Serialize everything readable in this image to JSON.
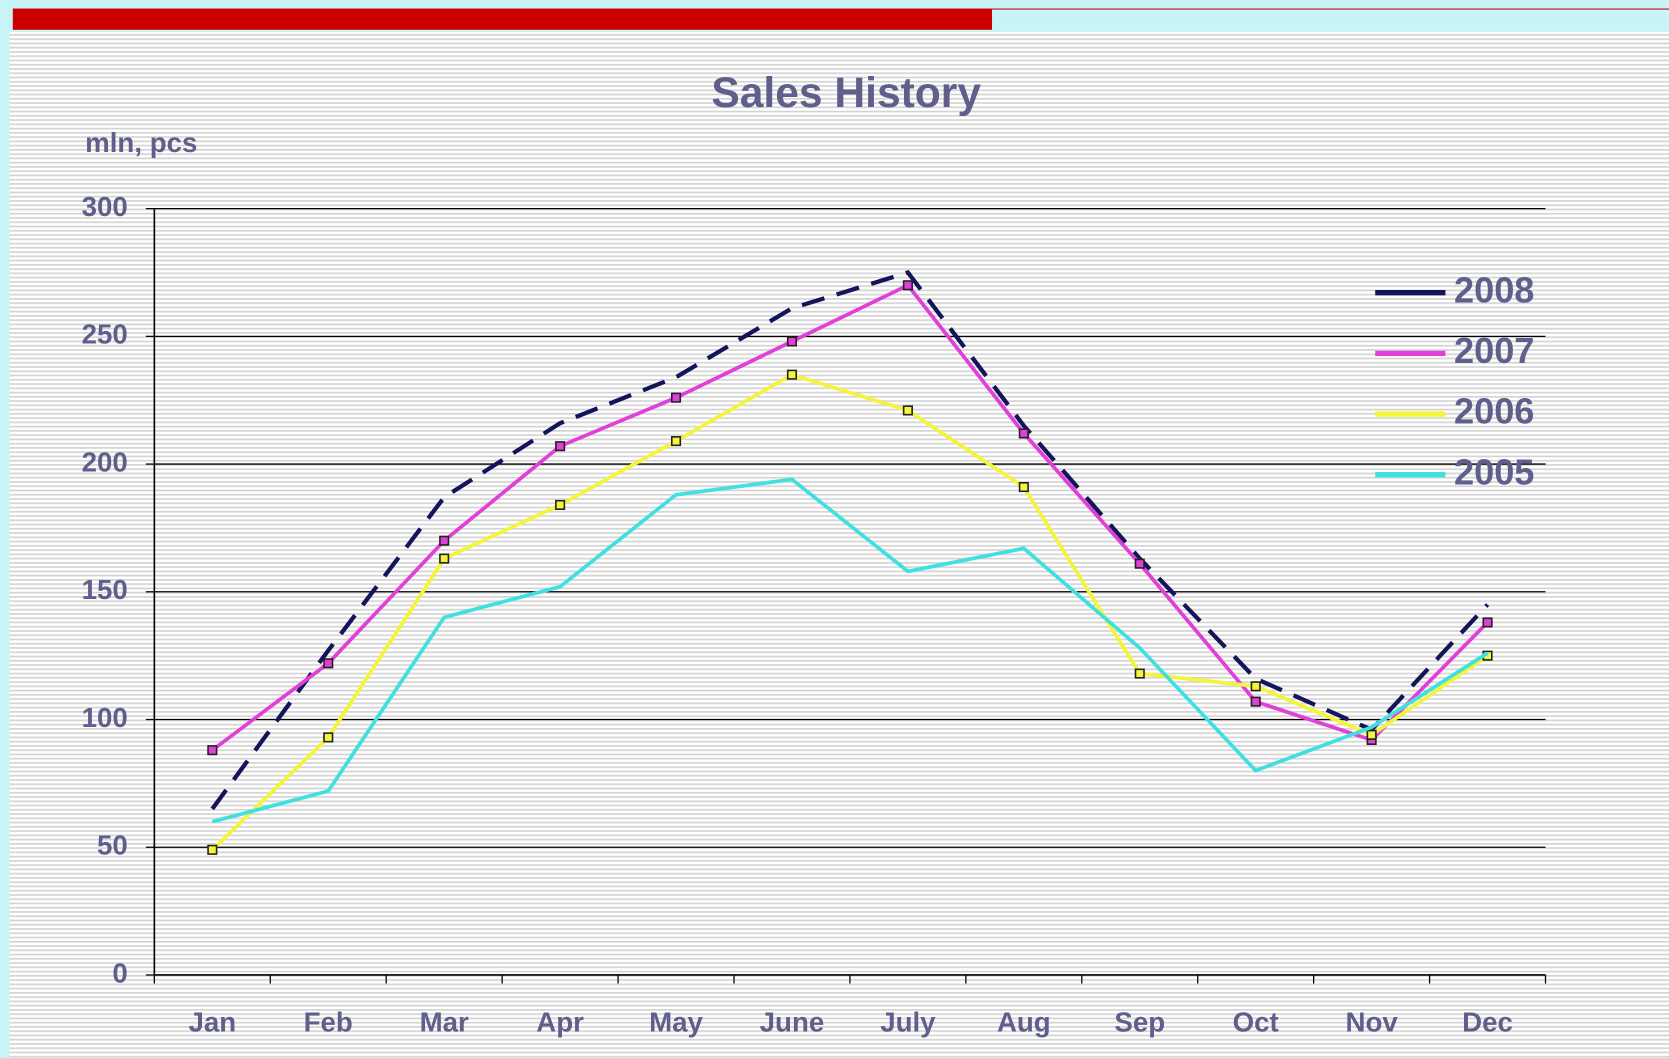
{
  "chart_data": {
    "type": "line",
    "title": "Sales History",
    "y_label": "mln, pcs",
    "categories": [
      "Jan",
      "Feb",
      "Mar",
      "Apr",
      "May",
      "June",
      "July",
      "Aug",
      "Sep",
      "Oct",
      "Nov",
      "Dec"
    ],
    "series": [
      {
        "name": "2008",
        "color": "#14145a",
        "dashed": true,
        "markers": false,
        "values": [
          65,
          127,
          187,
          216,
          234,
          261,
          275,
          215,
          163,
          116,
          96,
          145
        ]
      },
      {
        "name": "2007",
        "color": "#e040d8",
        "dashed": false,
        "markers": true,
        "values": [
          88,
          122,
          170,
          207,
          226,
          248,
          270,
          212,
          161,
          107,
          92,
          138
        ]
      },
      {
        "name": "2006",
        "color": "#f4f43a",
        "dashed": false,
        "markers": true,
        "values": [
          49,
          93,
          163,
          184,
          209,
          235,
          221,
          191,
          118,
          113,
          94,
          125
        ]
      },
      {
        "name": "2005",
        "color": "#40e0e0",
        "dashed": false,
        "markers": false,
        "values": [
          60,
          72,
          140,
          152,
          188,
          194,
          158,
          167,
          128,
          80,
          97,
          126
        ]
      }
    ],
    "ylim": [
      0,
      300
    ],
    "yticks": [
      0,
      50,
      100,
      150,
      200,
      250,
      300
    ],
    "grid": true,
    "legend": "upper right"
  }
}
